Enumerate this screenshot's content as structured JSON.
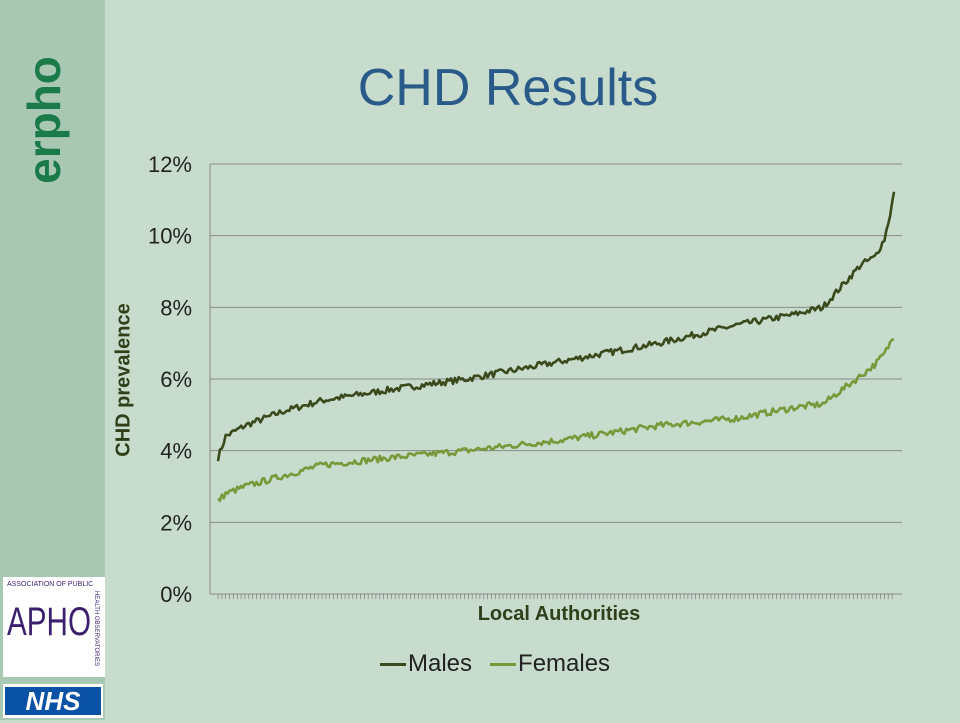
{
  "slide": {
    "title": "CHD Results"
  },
  "brand": {
    "erpho": "erpho",
    "aph_text": "APHO",
    "aph_caption": "ASSOCIATION OF PUBLIC",
    "aph_side": "HEALTH OBSERVATORIES",
    "nhs": "NHS"
  },
  "colors": {
    "background": "#c8dccd",
    "sidebar": "#a9c8b3",
    "title": "#2a5a8a",
    "males": "#3a4a1c",
    "females": "#77993a",
    "gridline": "#8a8a8a",
    "erpho": "#1b7a4a",
    "aph": "#3b1f6e",
    "nhs": "#0a52a5"
  },
  "chart_data": {
    "type": "line",
    "xlabel": "Local Authorities",
    "ylabel": "CHD prevalence",
    "ylim": [
      0,
      12
    ],
    "y_ticks": [
      "0%",
      "2%",
      "4%",
      "6%",
      "8%",
      "10%",
      "12%"
    ],
    "grid": true,
    "legend_position": "bottom",
    "n_points": 352,
    "series": [
      {
        "name": "Males",
        "description_points": [
          [
            1,
            3.8
          ],
          [
            5,
            4.4
          ],
          [
            15,
            4.7
          ],
          [
            35,
            5.1
          ],
          [
            55,
            5.4
          ],
          [
            90,
            5.7
          ],
          [
            130,
            6.0
          ],
          [
            180,
            6.5
          ],
          [
            230,
            7.0
          ],
          [
            270,
            7.5
          ],
          [
            300,
            7.8
          ],
          [
            315,
            8.0
          ],
          [
            325,
            8.6
          ],
          [
            335,
            9.2
          ],
          [
            342,
            9.4
          ],
          [
            347,
            9.9
          ],
          [
            350,
            10.6
          ],
          [
            352,
            11.2
          ]
        ]
      },
      {
        "name": "Females",
        "description_points": [
          [
            1,
            2.6
          ],
          [
            5,
            2.8
          ],
          [
            15,
            3.0
          ],
          [
            35,
            3.3
          ],
          [
            55,
            3.6
          ],
          [
            90,
            3.8
          ],
          [
            130,
            4.0
          ],
          [
            180,
            4.3
          ],
          [
            230,
            4.7
          ],
          [
            270,
            4.9
          ],
          [
            300,
            5.2
          ],
          [
            315,
            5.3
          ],
          [
            325,
            5.7
          ],
          [
            335,
            6.1
          ],
          [
            342,
            6.4
          ],
          [
            347,
            6.7
          ],
          [
            350,
            7.0
          ],
          [
            352,
            7.2
          ]
        ]
      }
    ]
  },
  "legend": {
    "males": "Males",
    "females": "Females"
  }
}
